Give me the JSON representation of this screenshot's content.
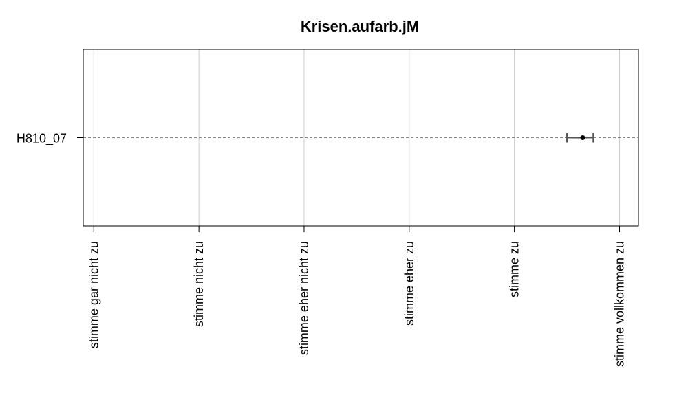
{
  "chart_data": {
    "type": "scatter",
    "title": "Krisen.aufarb.jM",
    "xlabel": "",
    "ylabel": "",
    "x_tick_labels": [
      "stimme gar nicht zu",
      "stimme nicht zu",
      "stimme eher nicht zu",
      "stimme eher zu",
      "stimme zu",
      "stimme vollkommen zu"
    ],
    "xlim": [
      0.9,
      6.18
    ],
    "categories": [
      "H810_07"
    ],
    "series": [
      {
        "values": [
          5.65
        ],
        "ci_low": [
          5.5
        ],
        "ci_high": [
          5.75
        ]
      }
    ],
    "grid": true,
    "legend": "none",
    "colors": {
      "grid": "#cccccc",
      "guide_line": "#888888",
      "errorbar": "#555555",
      "point": "#000000",
      "frame": "#000000"
    }
  }
}
